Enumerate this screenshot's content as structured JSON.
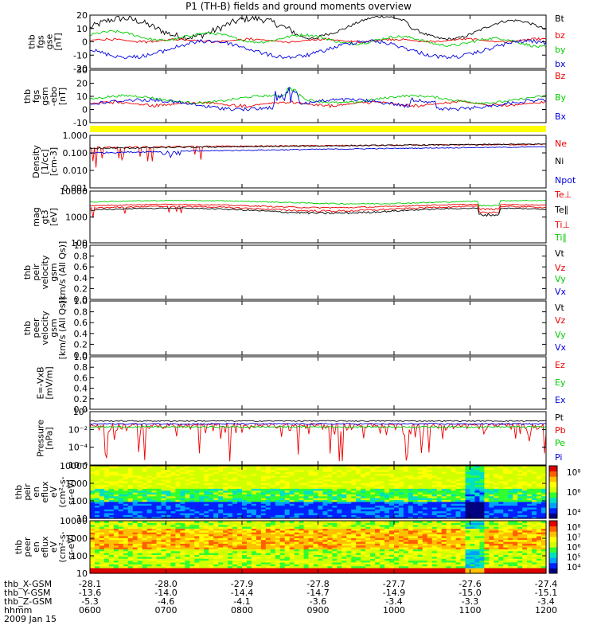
{
  "title": "P1 (TH-B) fields and ground moments overview",
  "date_label": "2009 Jan 15",
  "colors": {
    "black": "#000000",
    "red": "#ee0000",
    "green": "#00cc00",
    "blue": "#0000dd",
    "yellow": "#ffff00"
  },
  "chart_data": [
    {
      "type": "line",
      "id": "fgs-gse",
      "ylabel_lines": [
        "thb",
        "fgs",
        "gse",
        "[nT]"
      ],
      "ylim": [
        -20,
        20
      ],
      "yticks": [
        "20",
        "10",
        "0",
        "-10",
        "-20"
      ],
      "series": [
        {
          "name": "Bt",
          "color": "black"
        },
        {
          "name": "bz",
          "color": "red"
        },
        {
          "name": "by",
          "color": "green"
        },
        {
          "name": "bx",
          "color": "blue"
        }
      ]
    },
    {
      "type": "line",
      "id": "fgs-gsm-ebs",
      "ylabel_lines": [
        "thb",
        "fgs",
        "gsm",
        "-ebo",
        "[nT]"
      ],
      "ylim": [
        -15,
        30
      ],
      "yticks": [
        "30",
        "20",
        "10",
        "0",
        "-10"
      ],
      "series": [
        {
          "name": "Bz",
          "color": "red"
        },
        {
          "name": "By",
          "color": "green"
        },
        {
          "name": "Bx",
          "color": "blue"
        }
      ]
    },
    {
      "type": "line",
      "id": "density",
      "ylabel_lines": [
        "Density",
        "[1/cc]",
        "[cm-3]"
      ],
      "yscale": "log",
      "ylim": [
        0.001,
        1.0
      ],
      "yticks": [
        "1.000",
        "0.100",
        "0.010",
        "0.001"
      ],
      "series": [
        {
          "name": "Ne",
          "color": "red"
        },
        {
          "name": "Ni",
          "color": "black"
        },
        {
          "name": "Npot",
          "color": "blue"
        }
      ]
    },
    {
      "type": "line",
      "id": "temperature",
      "ylabel_lines": [
        "mag",
        "gt3",
        "[eV]"
      ],
      "yscale": "log",
      "ylim": [
        10,
        10000
      ],
      "yticks": [
        "10000",
        "1000",
        "100"
      ],
      "series": [
        {
          "name": "Te⊥",
          "color": "red"
        },
        {
          "name": "Te∥",
          "color": "black"
        },
        {
          "name": "Ti⊥",
          "color": "red"
        },
        {
          "name": "Ti∥",
          "color": "green"
        }
      ]
    },
    {
      "type": "line",
      "id": "peir-velocity",
      "ylabel_lines": [
        "thb",
        "peir",
        "velocity",
        "gsm",
        "[km/s (All Qs)]"
      ],
      "ylim": [
        0,
        1
      ],
      "yticks": [
        "1.0",
        "0.8",
        "0.6",
        "0.4",
        "0.2",
        "0.0"
      ],
      "series": [
        {
          "name": "Vt",
          "color": "black"
        },
        {
          "name": "Vz",
          "color": "red"
        },
        {
          "name": "Vy",
          "color": "green"
        },
        {
          "name": "Vx",
          "color": "blue"
        }
      ]
    },
    {
      "type": "line",
      "id": "peer-velocity",
      "ylabel_lines": [
        "thb",
        "peer",
        "velocity",
        "gsm",
        "[km/s (All Qs)]"
      ],
      "ylim": [
        0,
        1
      ],
      "yticks": [
        "1.0",
        "0.8",
        "0.6",
        "0.4",
        "0.2",
        "0.0"
      ],
      "series": [
        {
          "name": "Vt",
          "color": "black"
        },
        {
          "name": "Vz",
          "color": "red"
        },
        {
          "name": "Vy",
          "color": "green"
        },
        {
          "name": "Vx",
          "color": "blue"
        }
      ]
    },
    {
      "type": "line",
      "id": "e-field",
      "ylabel_lines": [
        "E=-VxB",
        "[mV/m]"
      ],
      "ylim": [
        0,
        1
      ],
      "yticks": [
        "1.0",
        "0.8",
        "0.6",
        "0.4",
        "0.2",
        "0.0"
      ],
      "series": [
        {
          "name": "Ez",
          "color": "red"
        },
        {
          "name": "Ey",
          "color": "green"
        },
        {
          "name": "Ex",
          "color": "blue"
        }
      ]
    },
    {
      "type": "line",
      "id": "pressure",
      "ylabel_lines": [
        "Pressure",
        "[nPa]"
      ],
      "yscale": "log",
      "ylim": [
        1e-07,
        1
      ],
      "yticks": [
        "10⁰",
        "10⁻²",
        "10⁻⁴",
        "10⁻⁶"
      ],
      "series": [
        {
          "name": "Pt",
          "color": "black"
        },
        {
          "name": "Pb",
          "color": "red"
        },
        {
          "name": "Pe",
          "color": "green"
        },
        {
          "name": "Pi",
          "color": "blue"
        }
      ]
    },
    {
      "type": "heatmap",
      "id": "peir-eflux",
      "ylabel_lines": [
        "thb",
        "peir",
        "en",
        "eflux",
        "eV",
        "(cm²-s-",
        "sr-eV)"
      ],
      "yscale": "log",
      "ylim": [
        10,
        20000
      ],
      "yticks": [
        "10000",
        "1000",
        "100",
        "10"
      ],
      "colorbar_ticks": [
        "10⁸",
        "10⁶",
        "10⁴"
      ]
    },
    {
      "type": "heatmap",
      "id": "peer-eflux",
      "ylabel_lines": [
        "thb",
        "peer",
        "en",
        "eflux",
        "eV",
        "(cm²-s-",
        "sr-eV)"
      ],
      "yscale": "log",
      "ylim": [
        10,
        20000
      ],
      "yticks": [
        "10000",
        "1000",
        "100",
        "10"
      ],
      "colorbar_ticks": [
        "10⁸",
        "10⁷",
        "10⁶",
        "10⁵",
        "10⁴"
      ]
    }
  ],
  "x_axis": {
    "time_range": [
      "0600",
      "1200"
    ],
    "ticks": [
      {
        "x": "-28.1",
        "y": "-13.6",
        "z": "-5.3",
        "t": "0600"
      },
      {
        "x": "-28.0",
        "y": "-14.0",
        "z": "-4.6",
        "t": "0700"
      },
      {
        "x": "-27.9",
        "y": "-14.4",
        "z": "-4.1",
        "t": "0800"
      },
      {
        "x": "-27.8",
        "y": "-14.7",
        "z": "-3.6",
        "t": "0900"
      },
      {
        "x": "-27.7",
        "y": "-14.9",
        "z": "-3.4",
        "t": "1000"
      },
      {
        "x": "-27.6",
        "y": "-15.0",
        "z": "-3.3",
        "t": "1100"
      },
      {
        "x": "-27.4",
        "y": "-15.1",
        "z": "-3.4",
        "t": "1200"
      }
    ],
    "row_labels": [
      "thb_X-GSM",
      "thb_Y-GSM",
      "thb_Z-GSM",
      "hhmm"
    ]
  }
}
